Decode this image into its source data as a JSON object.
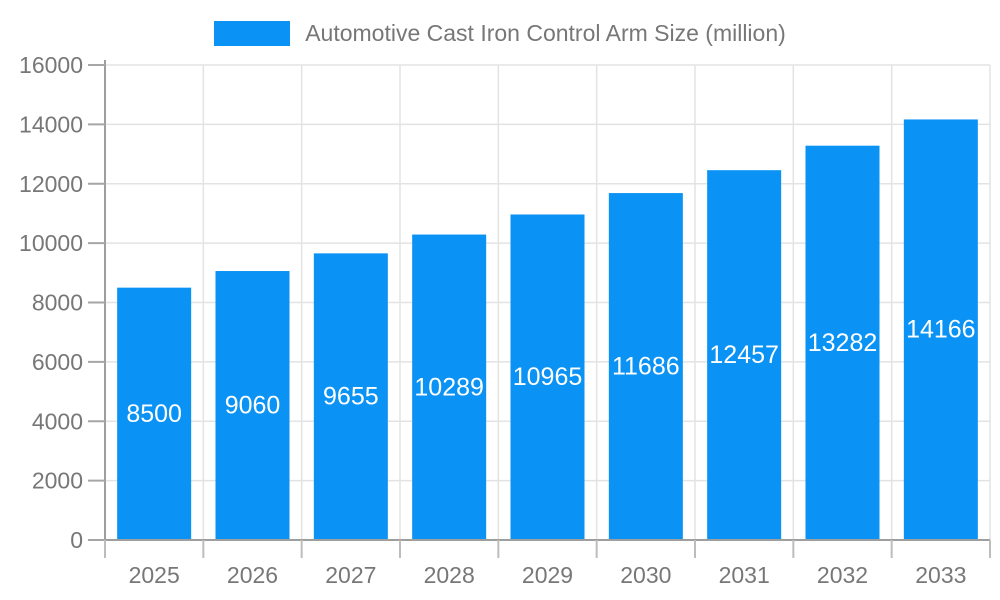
{
  "chart_data": {
    "type": "bar",
    "title": "Automotive Cast Iron Control Arm Size (million)",
    "legend_position": "top",
    "categories": [
      "2025",
      "2026",
      "2027",
      "2028",
      "2029",
      "2030",
      "2031",
      "2032",
      "2033"
    ],
    "series": [
      {
        "name": "Automotive Cast Iron Control Arm Size (million)",
        "values": [
          8500,
          9060,
          9655,
          10289,
          10965,
          11686,
          12457,
          13282,
          14166
        ]
      }
    ],
    "xlabel": "",
    "ylabel": "",
    "ylim": [
      0,
      16000
    ],
    "ytick_step": 2000,
    "yticks": [
      0,
      2000,
      4000,
      6000,
      8000,
      10000,
      12000,
      14000,
      16000
    ],
    "grid": true,
    "bar_value_labels_shown": true,
    "colors": {
      "bar": "#0a92f4",
      "bar_label": "#ffffff",
      "axis_text": "#777777",
      "legend_text": "#777777",
      "gridline": "#e3e3e3",
      "axis_line": "#9e9e9e",
      "y_tick": "#a6a6a6",
      "x_tick": "#bdbdbd",
      "background": "#ffffff"
    }
  }
}
